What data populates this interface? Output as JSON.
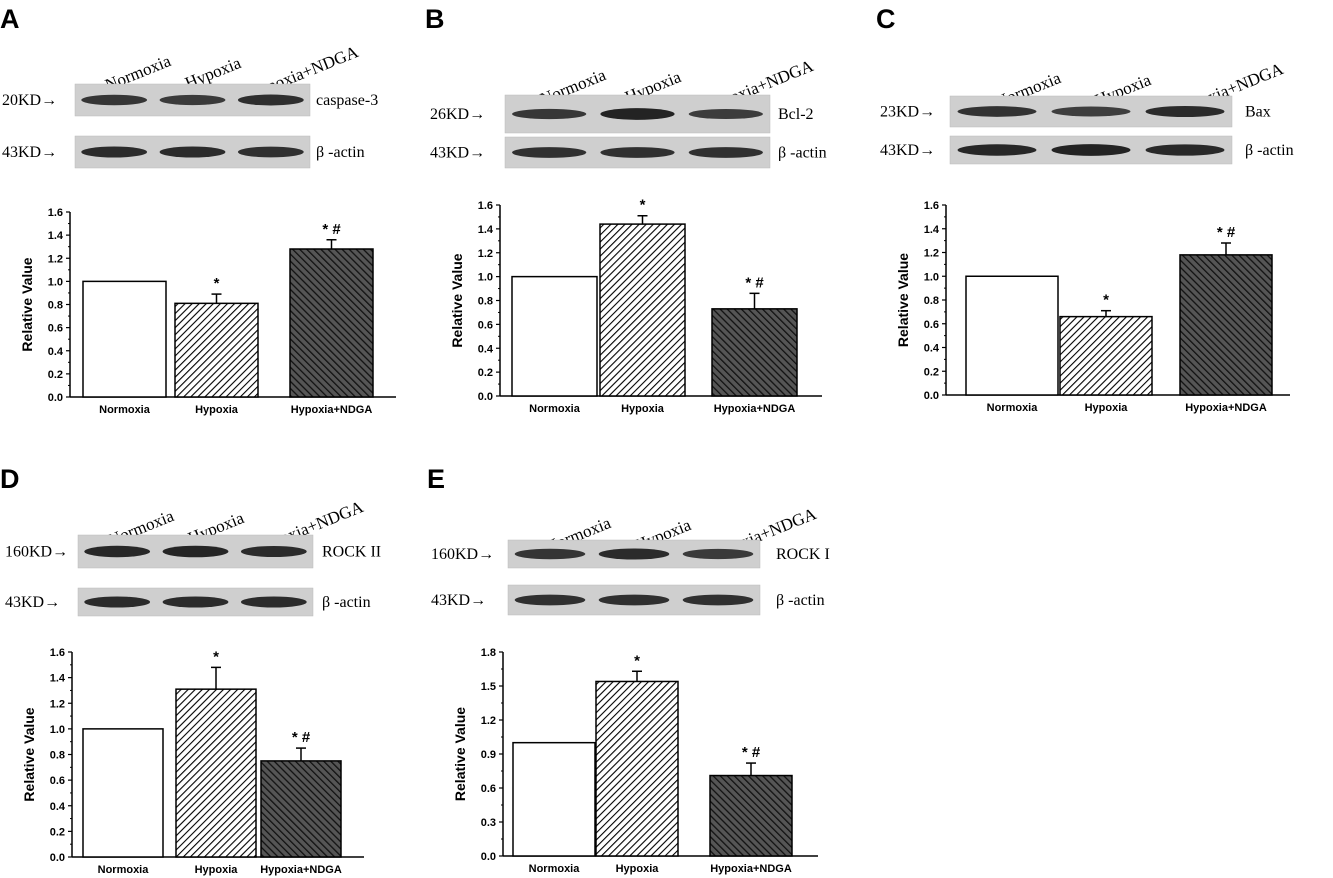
{
  "panels": [
    {
      "letter": "A",
      "blot": {
        "lanes": [
          "Normoxia",
          "Hypoxia",
          "Hypoxia+NDGA"
        ],
        "rows": [
          {
            "marker": "20KD→",
            "protein": "caspase-3",
            "intensity": [
              0.75,
              0.7,
              0.82
            ]
          },
          {
            "marker": "43KD→",
            "protein": "β -actin",
            "intensity": [
              0.85,
              0.85,
              0.8
            ]
          }
        ]
      },
      "ylabel": "Relative Value"
    },
    {
      "letter": "B",
      "blot": {
        "lanes": [
          "Normoxia",
          "Hypoxia",
          "Hypoxia+NDGA"
        ],
        "rows": [
          {
            "marker": "26KD→",
            "protein": "Bcl-2",
            "intensity": [
              0.72,
              0.95,
              0.68
            ]
          },
          {
            "marker": "43KD→",
            "protein": "β -actin",
            "intensity": [
              0.8,
              0.8,
              0.8
            ]
          }
        ]
      },
      "ylabel": "Relative Value"
    },
    {
      "letter": "C",
      "blot": {
        "lanes": [
          "Normoxia",
          "Hypoxia",
          "Hypoxia+NDGA"
        ],
        "rows": [
          {
            "marker": "23KD→",
            "protein": "Bax",
            "intensity": [
              0.78,
              0.65,
              0.85
            ]
          },
          {
            "marker": "43KD→",
            "protein": "β -actin",
            "intensity": [
              0.9,
              0.95,
              0.88
            ]
          }
        ]
      },
      "ylabel": "Relative Value"
    },
    {
      "letter": "D",
      "blot": {
        "lanes": [
          "Normoxia",
          "Hypoxia",
          "Hypoxia+NDGA"
        ],
        "rows": [
          {
            "marker": "160KD→",
            "protein": "ROCK II",
            "intensity": [
              0.9,
              0.92,
              0.85
            ]
          },
          {
            "marker": "43KD→",
            "protein": "β -actin",
            "intensity": [
              0.85,
              0.85,
              0.85
            ]
          }
        ]
      },
      "ylabel": "Relative Value"
    },
    {
      "letter": "E",
      "blot": {
        "lanes": [
          "Normoxia",
          "Hypoxia",
          "Hypoxia+NDGA"
        ],
        "rows": [
          {
            "marker": "160KD→",
            "protein": "ROCK I",
            "intensity": [
              0.75,
              0.85,
              0.7
            ]
          },
          {
            "marker": "43KD→",
            "protein": "β -actin",
            "intensity": [
              0.8,
              0.8,
              0.8
            ]
          }
        ]
      },
      "ylabel": "Relative Value"
    }
  ],
  "chart_data": [
    {
      "panel": "A",
      "type": "bar",
      "categories": [
        "Normoxia",
        "Hypoxia",
        "Hypoxia+NDGA"
      ],
      "values": [
        1.0,
        0.81,
        1.28
      ],
      "errors": [
        0,
        0.08,
        0.08
      ],
      "significance": [
        "",
        "*",
        "* #"
      ],
      "fills": [
        "white",
        "light-hatch",
        "dark-hatch"
      ],
      "ylabel": "Relative Value",
      "ylim": [
        0,
        1.6
      ],
      "yticks": [
        "0.0",
        "0.2",
        "0.4",
        "0.6",
        "0.8",
        "1.0",
        "1.2",
        "1.4",
        "1.6"
      ]
    },
    {
      "panel": "B",
      "type": "bar",
      "categories": [
        "Normoxia",
        "Hypoxia",
        "Hypoxia+NDGA"
      ],
      "values": [
        1.0,
        1.44,
        0.73
      ],
      "errors": [
        0,
        0.07,
        0.13
      ],
      "significance": [
        "",
        "*",
        "* #"
      ],
      "fills": [
        "white",
        "light-hatch",
        "dark-hatch"
      ],
      "ylabel": "Relative Value",
      "ylim": [
        0,
        1.6
      ],
      "yticks": [
        "0.0",
        "0.2",
        "0.4",
        "0.6",
        "0.8",
        "1.0",
        "1.2",
        "1.4",
        "1.6"
      ]
    },
    {
      "panel": "C",
      "type": "bar",
      "categories": [
        "Normoxia",
        "Hypoxia",
        "Hypoxia+NDGA"
      ],
      "values": [
        1.0,
        0.66,
        1.18
      ],
      "errors": [
        0,
        0.05,
        0.1
      ],
      "significance": [
        "",
        "*",
        "* #"
      ],
      "fills": [
        "white",
        "light-hatch",
        "dark-hatch"
      ],
      "ylabel": "Relative Value",
      "ylim": [
        0,
        1.6
      ],
      "yticks": [
        "0.0",
        "0.2",
        "0.4",
        "0.6",
        "0.8",
        "1.0",
        "1.2",
        "1.4",
        "1.6"
      ]
    },
    {
      "panel": "D",
      "type": "bar",
      "categories": [
        "Normoxia",
        "Hypoxia",
        "Hypoxia+NDGA"
      ],
      "values": [
        1.0,
        1.31,
        0.75
      ],
      "errors": [
        0,
        0.17,
        0.1
      ],
      "significance": [
        "",
        "*",
        "* #"
      ],
      "fills": [
        "white",
        "light-hatch",
        "dark-hatch"
      ],
      "ylabel": "Relative Value",
      "ylim": [
        0,
        1.6
      ],
      "yticks": [
        "0.0",
        "0.2",
        "0.4",
        "0.6",
        "0.8",
        "1.0",
        "1.2",
        "1.4",
        "1.6"
      ]
    },
    {
      "panel": "E",
      "type": "bar",
      "categories": [
        "Normoxia",
        "Hypoxia",
        "Hypoxia+NDGA"
      ],
      "values": [
        1.0,
        1.54,
        0.71
      ],
      "errors": [
        0,
        0.09,
        0.11
      ],
      "significance": [
        "",
        "*",
        "* #"
      ],
      "fills": [
        "white",
        "light-hatch",
        "dark-hatch"
      ],
      "ylabel": "Relative Value",
      "ylim": [
        0,
        1.8
      ],
      "yticks": [
        "0.0",
        "0.3",
        "0.6",
        "0.9",
        "1.2",
        "1.5",
        "1.8"
      ]
    }
  ]
}
